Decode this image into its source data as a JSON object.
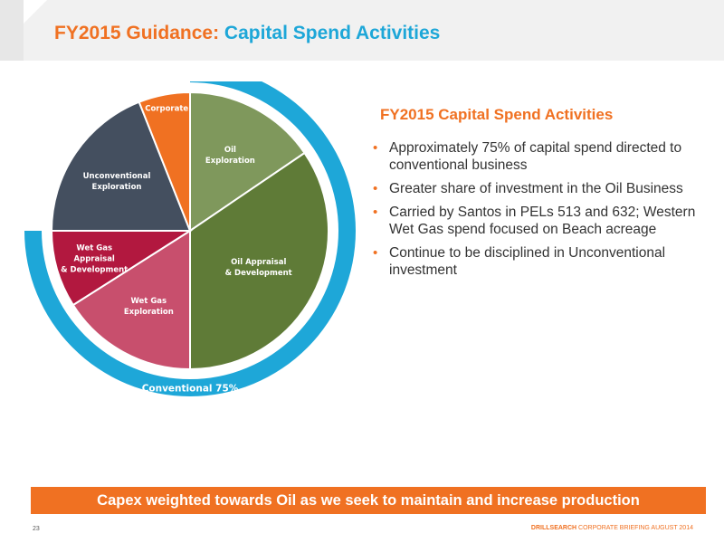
{
  "header": {
    "title_part1": "FY2015 Guidance:",
    "title_part2": "Capital Spend Activities"
  },
  "section_heading": "FY2015 Capital Spend Activities",
  "bullets": [
    "Approximately 75% of capital spend directed to conventional business",
    "Greater share of investment in the Oil Business",
    "Carried by Santos in PELs 513 and 632; Western Wet Gas spend focused on Beach acreage",
    "Continue to be disciplined in Unconventional investment"
  ],
  "chart_data": {
    "type": "pie",
    "slices": [
      {
        "label": "Oil Exploration",
        "value": 15.5,
        "color": "#7f985c"
      },
      {
        "label": "Oil Appraisal & Development",
        "value": 34.5,
        "color": "#5f7b37"
      },
      {
        "label": "Wet Gas Exploration",
        "value": 16,
        "color": "#c84f6d"
      },
      {
        "label": "Wet Gas Appraisal & Development",
        "value": 9,
        "color": "#b2183f"
      },
      {
        "label": "Unconventional Exploration",
        "value": 19,
        "color": "#444f5f"
      },
      {
        "label": "Corporate",
        "value": 6,
        "color": "#f07122"
      }
    ],
    "ring": {
      "label": "Conventional 75%",
      "color": "#1ea7d8"
    }
  },
  "banner": "Capex weighted towards Oil as we seek to maintain and increase production",
  "footer": {
    "page_number": "23",
    "brand": "DRILLSEARCH",
    "text": "CORPORATE BRIEFING AUGUST 2014"
  }
}
